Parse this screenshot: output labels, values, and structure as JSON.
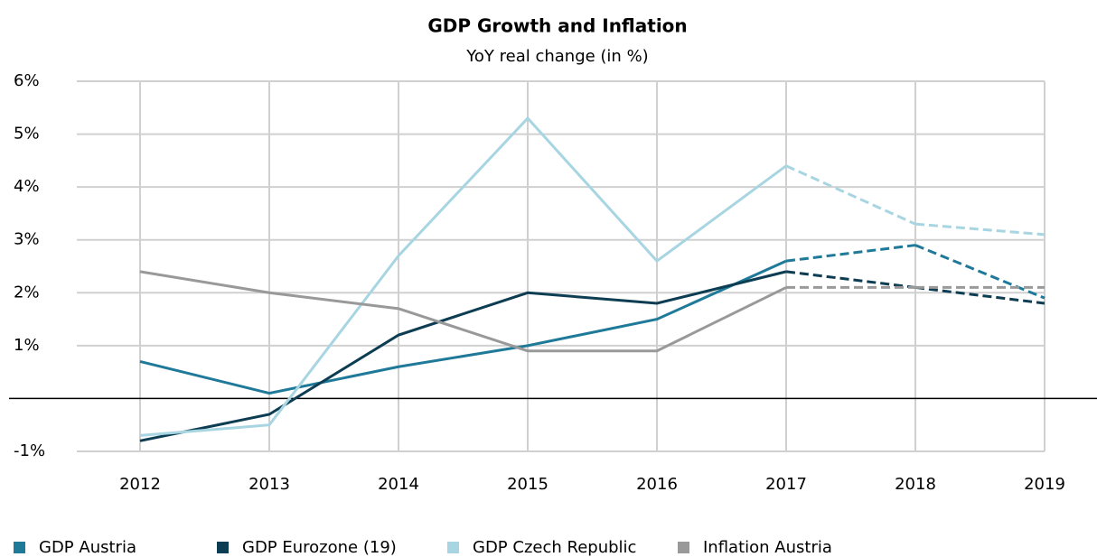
{
  "chart_data": {
    "type": "line",
    "title": "GDP Growth and Inflation",
    "subtitle": "YoY real change (in %)",
    "categories": [
      "2012",
      "2013",
      "2014",
      "2015",
      "2016",
      "2017",
      "2018",
      "2019"
    ],
    "forecast_start": "2017",
    "series": [
      {
        "name": "GDP Austria",
        "color": "#1f7a99",
        "values": [
          0.7,
          0.1,
          0.6,
          1.0,
          1.5,
          2.6,
          2.9,
          1.9
        ]
      },
      {
        "name": "GDP Eurozone (19)",
        "color": "#0d3d52",
        "values": [
          -0.8,
          -0.3,
          1.2,
          2.0,
          1.8,
          2.4,
          2.1,
          1.8
        ]
      },
      {
        "name": "GDP Czech Republic",
        "color": "#a8d5e2",
        "values": [
          -0.7,
          -0.5,
          2.7,
          5.3,
          2.6,
          4.4,
          3.3,
          3.1
        ]
      },
      {
        "name": "Inflation Austria",
        "color": "#999999",
        "values": [
          2.4,
          2.0,
          1.7,
          0.9,
          0.9,
          2.1,
          2.1,
          2.1
        ]
      }
    ],
    "ylim": [
      -1,
      6
    ],
    "yticks": [
      {
        "value": -1,
        "label": "-1%"
      },
      {
        "value": 1,
        "label": "1%"
      },
      {
        "value": 2,
        "label": "2%"
      },
      {
        "value": 3,
        "label": "3%"
      },
      {
        "value": 4,
        "label": "4%"
      },
      {
        "value": 5,
        "label": "5%"
      },
      {
        "value": 6,
        "label": "6%"
      }
    ],
    "grid": true
  }
}
